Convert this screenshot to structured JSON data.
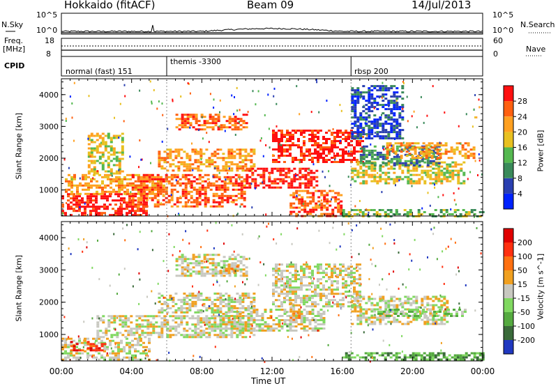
{
  "header": {
    "station": "Hokkaido (fitACF)",
    "beam": "Beam 09",
    "date": "14/Jul/2013"
  },
  "strip_labels": {
    "nsky": "N.Sky",
    "nsky_hi": "10^5",
    "nsky_lo": "10^0",
    "nsky_hi_r": "10^5",
    "nsky_lo_r": "10^0",
    "nsearch": "N.Search",
    "freq": "Freq.",
    "freq_unit": "[MHz]",
    "freq_hi": "18",
    "freq_lo": "8",
    "nave_hi": "60",
    "nave_lo": "0",
    "nave": "Nave",
    "cpid": "CPID"
  },
  "cpid_segments": [
    {
      "label": "normal (fast) 151",
      "start_hour": 0.0
    },
    {
      "label": "themis -3300",
      "start_hour": 6.0
    },
    {
      "label": "rbsp 200",
      "start_hour": 16.5
    }
  ],
  "chart_data": [
    {
      "type": "heatmap",
      "panel": "power",
      "ylabel": "Slant Range [km]",
      "xlim": [
        0,
        24
      ],
      "ylim": [
        180,
        4500
      ],
      "yticks": [
        1000,
        2000,
        3000,
        4000
      ],
      "colorbar_label": "Power [dB]",
      "colorbar_ticks": [
        "4",
        "8",
        "12",
        "16",
        "20",
        "24",
        "28"
      ],
      "colors": [
        "#0022ff",
        "#2a3fb0",
        "#3a8a5a",
        "#55b850",
        "#e8c020",
        "#ffa020",
        "#ff6010",
        "#ff1010"
      ],
      "regions": [
        {
          "t": [
            0.0,
            4.8
          ],
          "r": [
            200,
            900
          ],
          "level": 7
        },
        {
          "t": [
            0.2,
            6.0
          ],
          "r": [
            900,
            1500
          ],
          "level": 5
        },
        {
          "t": [
            4.0,
            10.5
          ],
          "r": [
            500,
            1500
          ],
          "level": 6
        },
        {
          "t": [
            5.5,
            11.0
          ],
          "r": [
            1600,
            2300
          ],
          "level": 5
        },
        {
          "t": [
            6.5,
            10.5
          ],
          "r": [
            2900,
            3400
          ],
          "level": 6
        },
        {
          "t": [
            10.5,
            14.5
          ],
          "r": [
            1100,
            1700
          ],
          "level": 7
        },
        {
          "t": [
            12.0,
            17.2
          ],
          "r": [
            1900,
            2900
          ],
          "level": 7
        },
        {
          "t": [
            13.0,
            16.0
          ],
          "r": [
            200,
            1000
          ],
          "level": 6
        },
        {
          "t": [
            16.5,
            23.0
          ],
          "r": [
            1200,
            1900
          ],
          "level": 4
        },
        {
          "t": [
            17.0,
            21.5
          ],
          "r": [
            1800,
            2400
          ],
          "level": 2
        },
        {
          "t": [
            18.5,
            23.5
          ],
          "r": [
            2000,
            2500
          ],
          "level": 5
        },
        {
          "t": [
            16.5,
            19.5
          ],
          "r": [
            2600,
            4300
          ],
          "level": 1
        },
        {
          "t": [
            16.0,
            24.0
          ],
          "r": [
            200,
            400
          ],
          "level": 3
        },
        {
          "t": [
            1.5,
            3.5
          ],
          "r": [
            1500,
            2800
          ],
          "level": 4
        }
      ]
    },
    {
      "type": "heatmap",
      "panel": "velocity",
      "xlabel": "Time UT",
      "ylabel": "Slant Range [km]",
      "xlim": [
        0,
        24
      ],
      "ylim": [
        180,
        4500
      ],
      "xticks": [
        "00:00",
        "04:00",
        "08:00",
        "12:00",
        "16:00",
        "20:00",
        "00:00"
      ],
      "yticks": [
        1000,
        2000,
        3000,
        4000
      ],
      "colorbar_label": "Velocity [m s^-1]",
      "colorbar_ticks": [
        "200",
        "100",
        "50",
        "15",
        "-15",
        "-50",
        "-100",
        "-200"
      ],
      "colors": [
        "#2038c0",
        "#3a6a3a",
        "#55aa40",
        "#80d860",
        "#c8c8c0",
        "#f0a020",
        "#ff7010",
        "#ff3010",
        "#e00000"
      ],
      "regions": [
        {
          "t": [
            0.0,
            5.0
          ],
          "r": [
            200,
            900
          ],
          "level": 4
        },
        {
          "t": [
            2.0,
            11.0
          ],
          "r": [
            900,
            1600
          ],
          "level": 4
        },
        {
          "t": [
            5.5,
            11.0
          ],
          "r": [
            1700,
            2300
          ],
          "level": 4
        },
        {
          "t": [
            6.5,
            10.5
          ],
          "r": [
            2800,
            3500
          ],
          "level": 4
        },
        {
          "t": [
            9.0,
            15.0
          ],
          "r": [
            1100,
            1800
          ],
          "level": 4
        },
        {
          "t": [
            12.0,
            17.0
          ],
          "r": [
            1900,
            3200
          ],
          "level": 4
        },
        {
          "t": [
            16.5,
            22.0
          ],
          "r": [
            1300,
            2200
          ],
          "level": 4
        },
        {
          "t": [
            18.0,
            23.0
          ],
          "r": [
            1600,
            1800
          ],
          "level": 3
        },
        {
          "t": [
            16.0,
            24.0
          ],
          "r": [
            200,
            450
          ],
          "level": 2
        },
        {
          "t": [
            9.0,
            10.0
          ],
          "r": [
            2900,
            3200
          ],
          "level": 5
        },
        {
          "t": [
            13.0,
            13.5
          ],
          "r": [
            1400,
            2000
          ],
          "level": 5
        },
        {
          "t": [
            0.5,
            2.5
          ],
          "r": [
            500,
            800
          ],
          "level": 7
        }
      ]
    }
  ]
}
